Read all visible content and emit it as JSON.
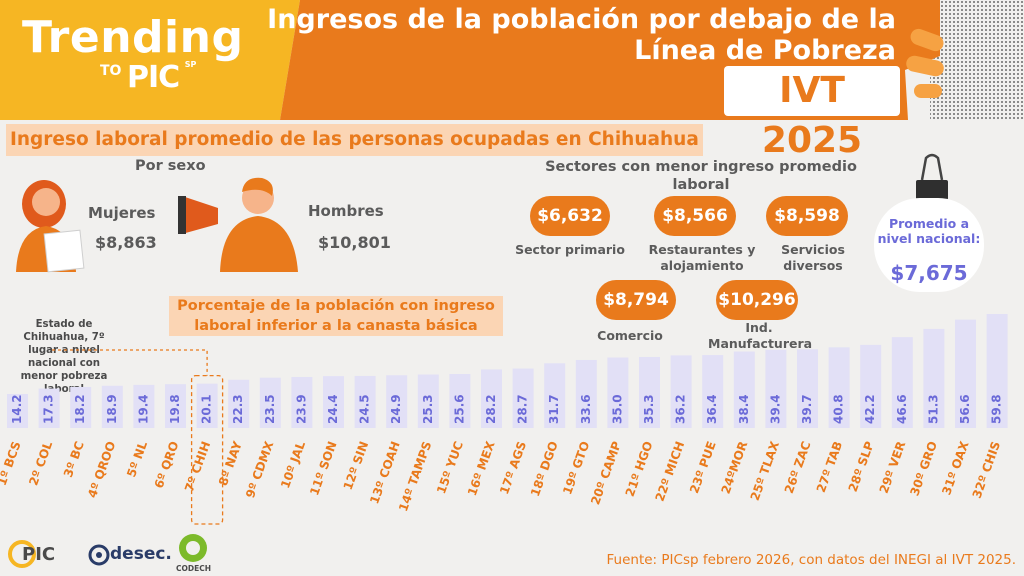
{
  "header": {
    "brand_title": "Trending",
    "brand_to": "TO",
    "brand_pic": "PIC",
    "brand_sp": "SP",
    "title": "Ingresos de la población por debajo de la Línea de Pobreza",
    "period": "IVT 2025"
  },
  "section": {
    "title": "Ingreso laboral promedio de las personas ocupadas en Chihuahua"
  },
  "by_sex": {
    "title": "Por sexo",
    "women_label": "Mujeres",
    "women_value": "$8,863",
    "men_label": "Hombres",
    "men_value": "$10,801"
  },
  "sectors": {
    "title": "Sectores con menor ingreso promedio laboral",
    "items": [
      {
        "value": "$6,632",
        "label": "Sector primario"
      },
      {
        "value": "$8,566",
        "label": "Restaurantes y alojamiento"
      },
      {
        "value": "$8,598",
        "label": "Servicios diversos"
      },
      {
        "value": "$8,794",
        "label": "Comercio"
      },
      {
        "value": "$10,296",
        "label": "Ind. Manufacturera"
      }
    ]
  },
  "national": {
    "label": "Promedio a nivel nacional:",
    "value": "$7,675"
  },
  "chart_note": "Estado de Chihuahua, 7º lugar a nivel nacional con menor pobreza laboral",
  "chart_data": {
    "type": "bar",
    "title": "Porcentaje de la población con ingreso laboral inferior a la canasta básica",
    "categories": [
      "1º BCS",
      "2º COL",
      "3º BC",
      "4º QROO",
      "5º NL",
      "6º QRO",
      "7º CHIH",
      "8º NAY",
      "9º CDMX",
      "10º JAL",
      "11º SON",
      "12º SIN",
      "13º COAH",
      "14º TAMPS",
      "15º YUC",
      "16º MEX",
      "17º AGS",
      "18º DGO",
      "19º GTO",
      "20º CAMP",
      "21º HGO",
      "22º MICH",
      "23º PUE",
      "24ºMOR",
      "25º TLAX",
      "26º ZAC",
      "27º TAB",
      "28º SLP",
      "29º VER",
      "30º GRO",
      "31º OAX",
      "32º CHIS"
    ],
    "values": [
      14.2,
      17.3,
      18.2,
      18.9,
      19.4,
      19.8,
      20.1,
      22.3,
      23.5,
      23.9,
      24.4,
      24.5,
      24.9,
      25.3,
      25.6,
      28.2,
      28.7,
      31.7,
      33.6,
      35.0,
      35.3,
      36.2,
      36.4,
      38.4,
      39.4,
      39.7,
      40.8,
      42.2,
      46.6,
      51.3,
      56.6,
      59.8
    ],
    "value_labels": [
      "14.2",
      "17.3",
      "18.2",
      "18.9",
      "19.4",
      "19.8",
      "20.1",
      "22.3",
      "23.5",
      "23.9",
      "24.4",
      "24.5",
      "24.9",
      "25.3",
      "25.6",
      "28.2",
      "28.7",
      "31.7",
      "33.6",
      "35.0",
      "35.3",
      "36.2",
      "36.4",
      "38.4",
      "39.4",
      "39.7",
      "40.8",
      "42.2",
      "46.6",
      "51.3",
      "56.6",
      "59.8"
    ],
    "highlight": "7º CHIH",
    "ylim": [
      0,
      60
    ],
    "xlabel": "",
    "ylabel": ""
  },
  "footer": {
    "source": "Fuente: PICsp febrero 2026, con datos del INEGI al IVT 2025.",
    "logo1": "PIC",
    "logo2": "desec.",
    "logo3": "CODECH"
  },
  "colors": {
    "orange": "#e97a1c",
    "yellow": "#f6b623",
    "peach": "#fbd5b4",
    "bar": "#e2e0f6",
    "bar_text": "#6b6ad8",
    "category_text": "#e97a1c"
  }
}
